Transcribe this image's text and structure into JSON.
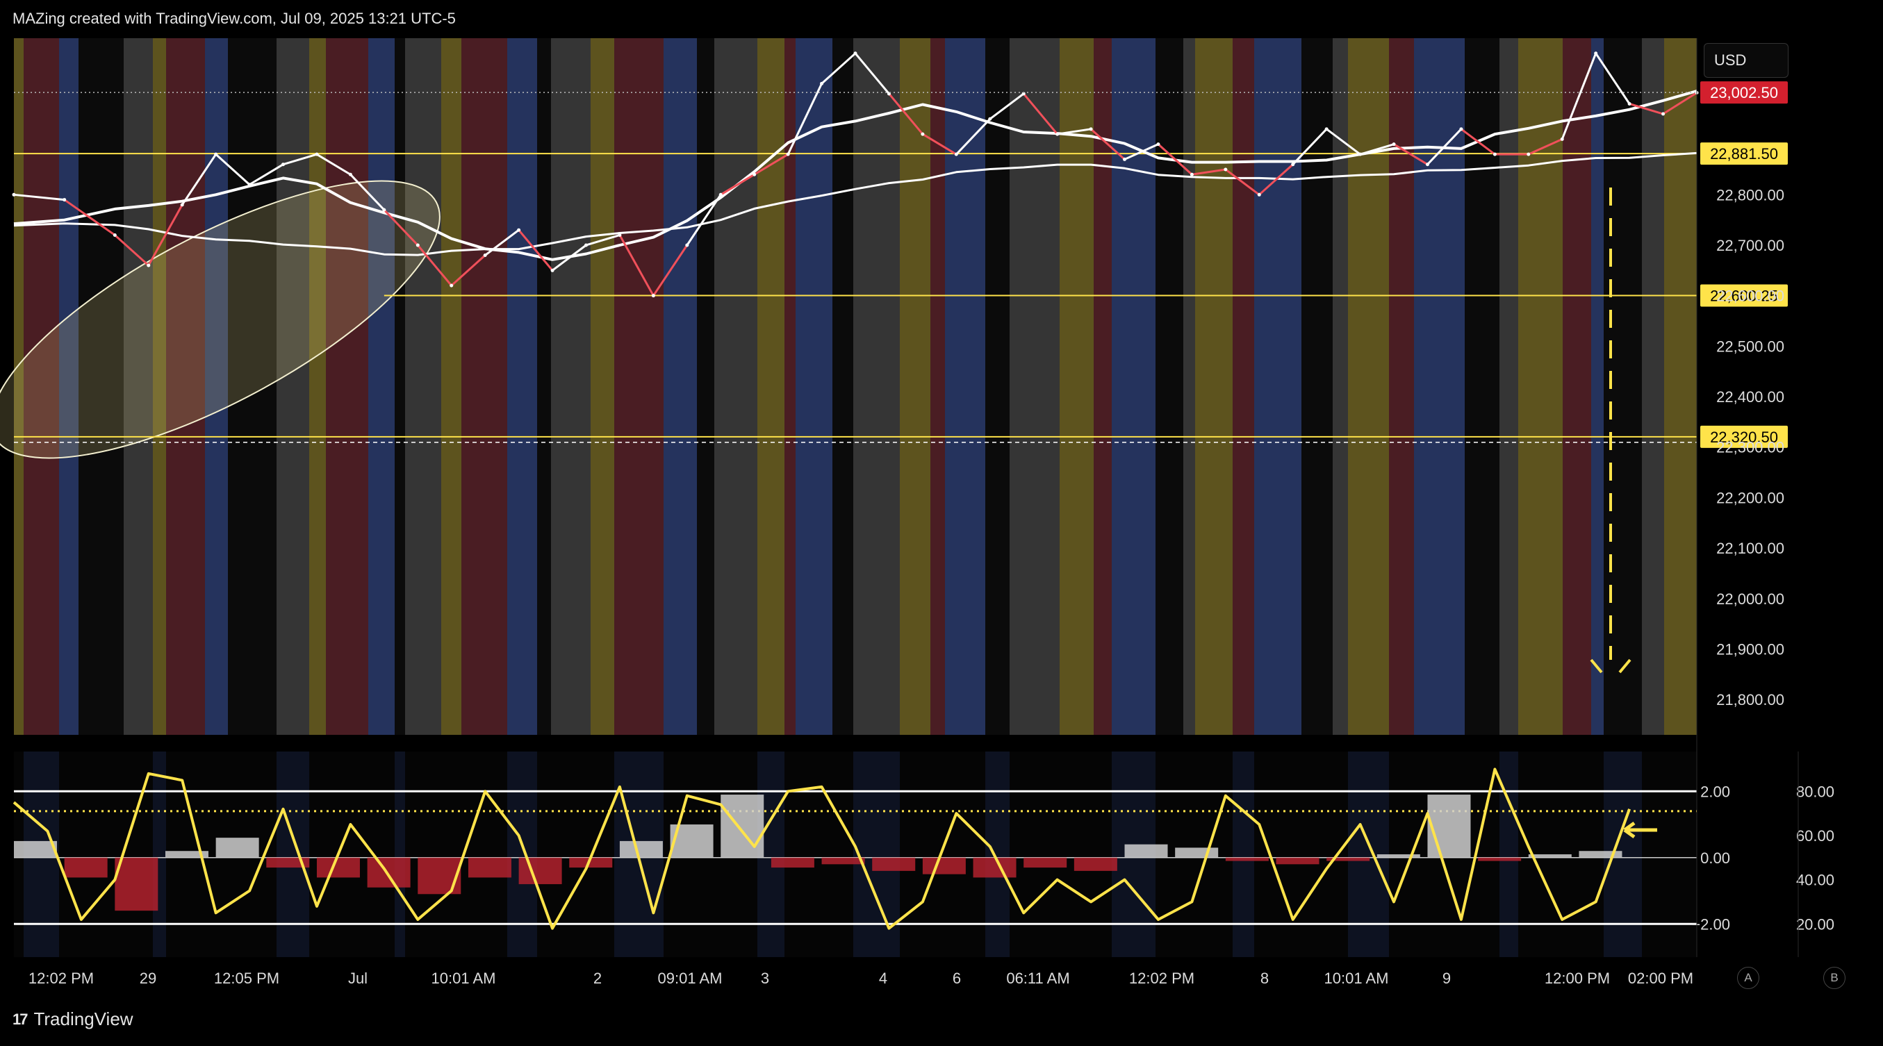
{
  "header": {
    "attribution": "MAZing created with TradingView.com, Jul 09, 2025 13:21 UTC-5"
  },
  "footer": {
    "brand": "TradingView",
    "logo_text": "17"
  },
  "currency": "USD",
  "scale_buttons": [
    "A",
    "B"
  ],
  "colors": {
    "price_up": "#ffffff",
    "price_down": "#f0505a",
    "ma": "#ffffff",
    "ma_red": "#f0505a",
    "level": "#ffe34a",
    "oscillator": "#ffe34a",
    "hist_up": "#cfcfcf",
    "hist_down": "#b3222e",
    "price_badge": "#d3202e"
  },
  "chart_data": [
    {
      "type": "line",
      "title": "",
      "y_axis": {
        "ticks": [
          22800.0,
          22700.0,
          22600.0,
          22500.0,
          22400.0,
          22300.0,
          22200.0,
          22100.0,
          22000.0,
          21900.0,
          21800.0
        ],
        "tick_labels": [
          "22,800.00",
          "22,700.00",
          "22,600.00",
          "22,500.00",
          "22,400.00",
          "22,300.00",
          "22,200.00",
          "22,100.00",
          "22,000.00",
          "21,900.00",
          "21,800.00"
        ],
        "range": [
          21730,
          23110
        ]
      },
      "x_axis": {
        "tick_labels": [
          "12:02 PM",
          "29",
          "12:05 PM",
          "Jul",
          "10:01 AM",
          "2",
          "09:01 AM",
          "3",
          "4",
          "6",
          "06:11 AM",
          "12:02 PM",
          "8",
          "10:01 AM",
          "9",
          "12:00 PM",
          "02:00 PM"
        ]
      },
      "last_price": {
        "value": 23002.5,
        "label": "23,002.50"
      },
      "levels": [
        {
          "value": 22881.5,
          "label": "22,881.50",
          "start": 0.0
        },
        {
          "value": 22600.25,
          "label": "22,600.25",
          "start": 0.22
        },
        {
          "value": 22320.5,
          "label": "22,320.50",
          "start": 0.0
        }
      ],
      "series": [
        {
          "values_x": [
            0,
            0.03,
            0.06,
            0.08,
            0.1,
            0.12,
            0.14,
            0.16,
            0.18,
            0.2,
            0.22,
            0.24,
            0.26,
            0.28,
            0.3,
            0.32,
            0.34,
            0.36,
            0.38,
            0.4,
            0.42,
            0.44,
            0.46,
            0.48,
            0.5,
            0.52,
            0.54,
            0.56,
            0.58,
            0.6,
            0.62,
            0.64,
            0.66,
            0.68,
            0.7,
            0.72,
            0.74,
            0.76,
            0.78,
            0.8,
            0.82,
            0.84,
            0.86,
            0.88,
            0.9,
            0.92,
            0.94,
            0.96,
            0.98,
            1.0
          ],
          "values": [
            22800,
            22790,
            22720,
            22660,
            22780,
            22880,
            22820,
            22860,
            22880,
            22840,
            22770,
            22700,
            22620,
            22680,
            22730,
            22650,
            22700,
            22720,
            22600,
            22700,
            22800,
            22840,
            22880,
            23020,
            23080,
            23000,
            22920,
            22880,
            22950,
            23000,
            22920,
            22930,
            22870,
            22900,
            22840,
            22850,
            22800,
            22860,
            22930,
            22880,
            22900,
            22860,
            22930,
            22880,
            22880,
            22910,
            23080,
            22980,
            22960,
            23002
          ]
        }
      ]
    },
    {
      "type": "line",
      "title": "",
      "y_axis": {
        "ticks": [
          2.0,
          0.0,
          -2.0
        ],
        "tick_labels": [
          "2.00",
          "0.00",
          "−2.00"
        ],
        "range": [
          -3.0,
          3.2
        ]
      },
      "y_axis_right": {
        "ticks": [
          80,
          60,
          40,
          20
        ],
        "tick_labels": [
          "80.00",
          "60.00",
          "40.00",
          "20.00"
        ]
      },
      "series": [
        {
          "name": "oscillator (yellow)",
          "values_x": [
            0,
            0.02,
            0.04,
            0.06,
            0.08,
            0.1,
            0.12,
            0.14,
            0.16,
            0.18,
            0.2,
            0.22,
            0.24,
            0.26,
            0.28,
            0.3,
            0.32,
            0.34,
            0.36,
            0.38,
            0.4,
            0.42,
            0.44,
            0.46,
            0.48,
            0.5,
            0.52,
            0.54,
            0.56,
            0.58,
            0.6,
            0.62,
            0.64,
            0.66,
            0.68,
            0.7,
            0.72,
            0.74,
            0.76,
            0.78,
            0.8,
            0.82,
            0.84,
            0.86,
            0.88,
            0.9,
            0.92,
            0.94,
            0.96
          ],
          "values": [
            75,
            62,
            22,
            40,
            88,
            85,
            25,
            35,
            72,
            28,
            65,
            45,
            22,
            35,
            80,
            60,
            18,
            45,
            82,
            25,
            78,
            74,
            55,
            80,
            82,
            55,
            18,
            30,
            70,
            55,
            25,
            40,
            30,
            40,
            22,
            30,
            78,
            65,
            22,
            45,
            65,
            30,
            70,
            22,
            90,
            55,
            22,
            30,
            72
          ]
        },
        {
          "name": "histogram",
          "values_x": [
            0,
            0.03,
            0.06,
            0.09,
            0.12,
            0.15,
            0.18,
            0.21,
            0.24,
            0.27,
            0.3,
            0.33,
            0.36,
            0.39,
            0.42,
            0.45,
            0.48,
            0.51,
            0.54,
            0.57,
            0.6,
            0.63,
            0.66,
            0.69,
            0.72,
            0.75,
            0.78,
            0.81,
            0.84,
            0.87,
            0.9,
            0.93,
            0.96
          ],
          "values": [
            0.5,
            -0.6,
            -1.6,
            0.2,
            0.6,
            -0.3,
            -0.6,
            -0.9,
            -1.1,
            -0.6,
            -0.8,
            -0.3,
            0.5,
            1.0,
            1.9,
            -0.3,
            -0.2,
            -0.4,
            -0.5,
            -0.6,
            -0.3,
            -0.4,
            0.4,
            0.3,
            -0.1,
            -0.2,
            -0.1,
            0.1,
            1.9,
            -0.1,
            0.1,
            0.2,
            0.0
          ]
        }
      ]
    }
  ]
}
